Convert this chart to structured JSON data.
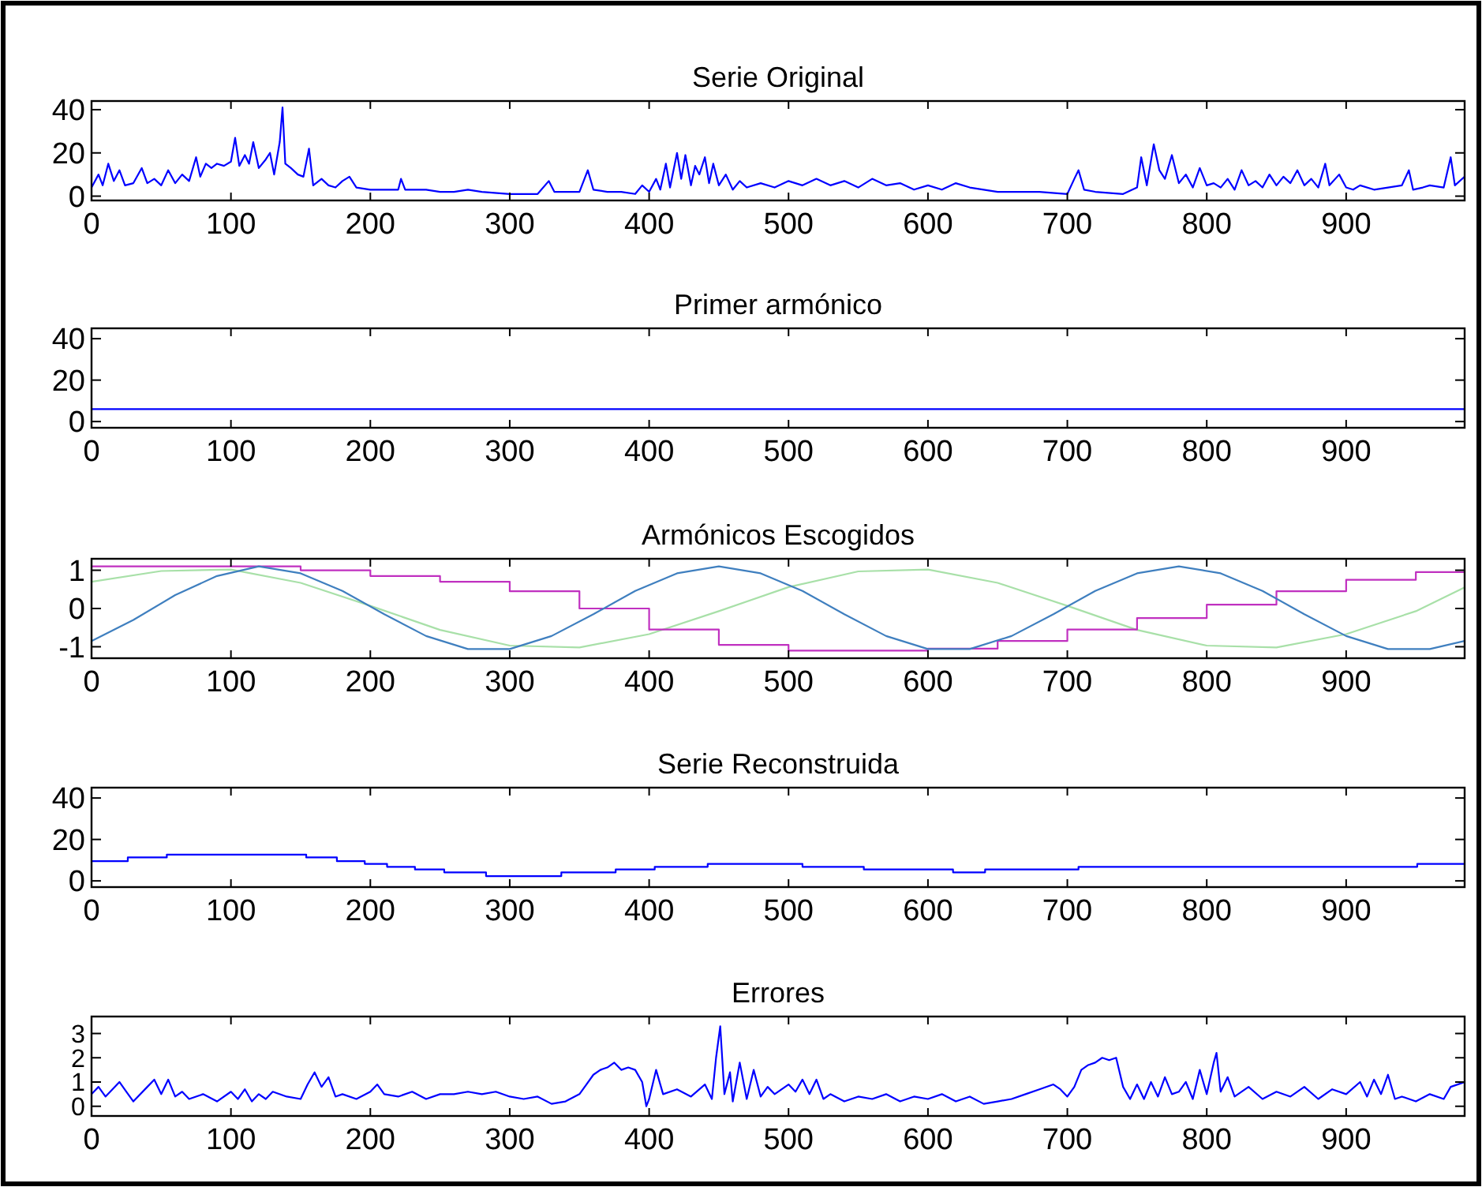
{
  "chart_data": [
    {
      "type": "line",
      "title": "Serie Original",
      "xlim": [
        0,
        985
      ],
      "xticks": [
        0,
        100,
        200,
        300,
        400,
        500,
        600,
        700,
        800,
        900
      ],
      "ylim": [
        -2,
        44
      ],
      "yticks": [
        0,
        20,
        40
      ],
      "series": [
        {
          "color": "#0000ff",
          "x": [
            0,
            5,
            8,
            12,
            16,
            20,
            24,
            30,
            36,
            40,
            45,
            50,
            55,
            60,
            65,
            70,
            75,
            78,
            82,
            86,
            90,
            95,
            100,
            103,
            106,
            110,
            113,
            116,
            120,
            125,
            128,
            131,
            135,
            137,
            139,
            143,
            148,
            152,
            156,
            159,
            165,
            170,
            175,
            180,
            185,
            190,
            200,
            210,
            220,
            222,
            225,
            240,
            250,
            260,
            270,
            280,
            300,
            320,
            328,
            332,
            350,
            356,
            360,
            370,
            380,
            390,
            395,
            400,
            405,
            408,
            412,
            415,
            420,
            423,
            426,
            430,
            433,
            436,
            440,
            443,
            446,
            450,
            455,
            460,
            465,
            470,
            480,
            490,
            500,
            510,
            520,
            530,
            540,
            550,
            560,
            570,
            580,
            590,
            600,
            610,
            620,
            630,
            640,
            650,
            660,
            680,
            700,
            705,
            708,
            712,
            720,
            740,
            750,
            753,
            757,
            762,
            766,
            770,
            775,
            780,
            785,
            790,
            795,
            800,
            805,
            810,
            815,
            820,
            825,
            830,
            835,
            840,
            845,
            850,
            855,
            860,
            865,
            870,
            875,
            880,
            885,
            888,
            895,
            900,
            905,
            910,
            920,
            930,
            940,
            945,
            948,
            955,
            960,
            970,
            975,
            978,
            985
          ],
          "values": [
            4,
            10,
            5,
            15,
            7,
            12,
            5,
            6,
            13,
            6,
            8,
            5,
            12,
            6,
            10,
            7,
            18,
            9,
            15,
            13,
            15,
            14,
            16,
            27,
            14,
            19,
            15,
            25,
            13,
            17,
            20,
            10,
            25,
            41,
            15,
            13,
            10,
            9,
            22,
            5,
            8,
            5,
            4,
            7,
            9,
            4,
            3,
            3,
            3,
            8,
            3,
            3,
            2,
            2,
            3,
            2,
            1,
            1,
            7,
            2,
            2,
            12,
            3,
            2,
            2,
            1,
            5,
            2,
            8,
            3,
            15,
            4,
            20,
            8,
            19,
            5,
            14,
            10,
            18,
            6,
            15,
            5,
            10,
            3,
            7,
            4,
            6,
            4,
            7,
            5,
            8,
            5,
            7,
            4,
            8,
            5,
            6,
            3,
            5,
            3,
            6,
            4,
            3,
            2,
            2,
            2,
            1,
            8,
            12,
            3,
            2,
            1,
            4,
            18,
            5,
            24,
            12,
            8,
            19,
            6,
            10,
            4,
            13,
            5,
            6,
            4,
            8,
            3,
            12,
            5,
            7,
            4,
            10,
            5,
            9,
            6,
            12,
            5,
            8,
            4,
            15,
            5,
            10,
            4,
            3,
            5,
            3,
            4,
            5,
            12,
            3,
            4,
            5,
            4,
            18,
            5,
            9
          ]
        }
      ]
    },
    {
      "type": "line",
      "title": "Primer armónico",
      "xlim": [
        0,
        985
      ],
      "xticks": [
        0,
        100,
        200,
        300,
        400,
        500,
        600,
        700,
        800,
        900
      ],
      "ylim": [
        -3,
        45
      ],
      "yticks": [
        0,
        20,
        40
      ],
      "series": [
        {
          "color": "#0000ff",
          "x": [
            0,
            985
          ],
          "values": [
            6,
            6
          ]
        }
      ]
    },
    {
      "type": "line",
      "title": "Armónicos Escogidos",
      "xlim": [
        0,
        985
      ],
      "xticks": [
        0,
        100,
        200,
        300,
        400,
        500,
        600,
        700,
        800,
        900
      ],
      "ylim": [
        -1.3,
        1.3
      ],
      "yticks": [
        -1,
        0,
        1
      ],
      "series": [
        {
          "color": "#a8e0a8",
          "x": [
            0,
            50,
            100,
            150,
            200,
            250,
            300,
            350,
            400,
            450,
            500,
            550,
            600,
            650,
            700,
            750,
            800,
            850,
            900,
            950,
            985
          ],
          "values": [
            0.7,
            0.98,
            1.02,
            0.67,
            0.07,
            -0.56,
            -0.97,
            -1.02,
            -0.67,
            -0.07,
            0.56,
            0.97,
            1.02,
            0.67,
            0.07,
            -0.56,
            -0.97,
            -1.02,
            -0.67,
            -0.07,
            0.55
          ]
        },
        {
          "color": "#c030c0",
          "type": "step",
          "x": [
            0,
            100,
            150,
            200,
            250,
            300,
            350,
            400,
            450,
            500,
            550,
            600,
            650,
            700,
            750,
            800,
            850,
            900,
            950,
            985
          ],
          "values": [
            1.1,
            1.1,
            1.0,
            0.85,
            0.7,
            0.45,
            0,
            -0.55,
            -0.95,
            -1.1,
            -1.1,
            -1.05,
            -0.85,
            -0.55,
            -0.25,
            0.1,
            0.45,
            0.75,
            0.95,
            1.05
          ]
        },
        {
          "color": "#3f7fbf",
          "x": [
            0,
            30,
            60,
            90,
            120,
            150,
            180,
            210,
            240,
            270,
            300,
            330,
            360,
            390,
            420,
            450,
            480,
            510,
            540,
            570,
            600,
            630,
            660,
            690,
            720,
            750,
            780,
            810,
            840,
            870,
            900,
            930,
            960,
            985
          ],
          "values": [
            -0.85,
            -0.3,
            0.35,
            0.85,
            1.1,
            0.92,
            0.46,
            -0.15,
            -0.72,
            -1.06,
            -1.06,
            -0.72,
            -0.15,
            0.46,
            0.92,
            1.1,
            0.92,
            0.46,
            -0.15,
            -0.72,
            -1.06,
            -1.06,
            -0.72,
            -0.15,
            0.46,
            0.92,
            1.1,
            0.92,
            0.46,
            -0.15,
            -0.72,
            -1.06,
            -1.06,
            -0.85
          ]
        }
      ]
    },
    {
      "type": "step",
      "title": "Serie Reconstruida",
      "xlim": [
        0,
        985
      ],
      "xticks": [
        0,
        100,
        200,
        300,
        400,
        500,
        600,
        700,
        800,
        900
      ],
      "ylim": [
        -3,
        45
      ],
      "yticks": [
        0,
        20,
        40
      ],
      "series": [
        {
          "color": "#0000ff",
          "x": [
            0,
            26,
            54,
            154,
            176,
            196,
            212,
            232,
            253,
            283,
            337,
            376,
            404,
            442,
            510,
            554,
            618,
            641,
            708,
            951,
            985
          ],
          "values": [
            9.5,
            11.3,
            12.7,
            11.3,
            9.5,
            8.2,
            6.8,
            5.5,
            4.1,
            2.3,
            4.1,
            5.5,
            6.8,
            8.2,
            6.8,
            5.5,
            4.1,
            5.5,
            6.8,
            8.2,
            8.2
          ]
        }
      ]
    },
    {
      "type": "line",
      "title": "Errores",
      "xlim": [
        0,
        985
      ],
      "xticks": [
        0,
        100,
        200,
        300,
        400,
        500,
        600,
        700,
        800,
        900
      ],
      "ylim": [
        -0.4,
        3.7
      ],
      "yticks": [
        0,
        1,
        2,
        3
      ],
      "series": [
        {
          "color": "#0000ff",
          "x": [
            0,
            5,
            10,
            15,
            20,
            25,
            30,
            40,
            45,
            50,
            55,
            60,
            65,
            70,
            80,
            90,
            100,
            105,
            110,
            115,
            120,
            125,
            130,
            140,
            150,
            155,
            160,
            165,
            170,
            175,
            180,
            190,
            200,
            205,
            210,
            220,
            230,
            240,
            250,
            260,
            270,
            280,
            290,
            300,
            310,
            320,
            330,
            340,
            350,
            355,
            360,
            365,
            370,
            375,
            380,
            385,
            390,
            395,
            398,
            400,
            405,
            410,
            420,
            430,
            440,
            445,
            448,
            451,
            454,
            458,
            460,
            465,
            470,
            475,
            480,
            485,
            490,
            500,
            505,
            510,
            515,
            520,
            525,
            530,
            540,
            550,
            560,
            570,
            580,
            590,
            600,
            610,
            620,
            630,
            640,
            650,
            660,
            670,
            680,
            690,
            695,
            700,
            705,
            710,
            715,
            720,
            725,
            730,
            735,
            740,
            745,
            750,
            755,
            760,
            765,
            770,
            775,
            780,
            785,
            790,
            795,
            800,
            805,
            807,
            810,
            815,
            820,
            830,
            840,
            850,
            860,
            870,
            880,
            890,
            900,
            910,
            915,
            920,
            925,
            930,
            935,
            940,
            950,
            960,
            970,
            975,
            985
          ],
          "values": [
            0.5,
            0.8,
            0.4,
            0.7,
            1.0,
            0.6,
            0.2,
            0.8,
            1.1,
            0.5,
            1.1,
            0.4,
            0.6,
            0.3,
            0.5,
            0.2,
            0.6,
            0.3,
            0.7,
            0.2,
            0.5,
            0.3,
            0.6,
            0.4,
            0.3,
            0.9,
            1.4,
            0.8,
            1.2,
            0.4,
            0.5,
            0.3,
            0.6,
            0.9,
            0.5,
            0.4,
            0.6,
            0.3,
            0.5,
            0.5,
            0.6,
            0.5,
            0.6,
            0.4,
            0.3,
            0.4,
            0.1,
            0.2,
            0.5,
            0.9,
            1.3,
            1.5,
            1.6,
            1.8,
            1.5,
            1.6,
            1.5,
            1.0,
            0.0,
            0.3,
            1.5,
            0.5,
            0.7,
            0.4,
            0.9,
            0.3,
            2.0,
            3.3,
            0.5,
            1.4,
            0.2,
            1.8,
            0.3,
            1.5,
            0.4,
            0.8,
            0.5,
            0.9,
            0.6,
            1.1,
            0.5,
            1.1,
            0.3,
            0.5,
            0.2,
            0.4,
            0.3,
            0.5,
            0.2,
            0.4,
            0.3,
            0.5,
            0.2,
            0.4,
            0.1,
            0.2,
            0.3,
            0.5,
            0.7,
            0.9,
            0.7,
            0.4,
            0.8,
            1.5,
            1.7,
            1.8,
            2.0,
            1.9,
            2.0,
            0.8,
            0.3,
            0.9,
            0.3,
            1.0,
            0.4,
            1.2,
            0.5,
            0.6,
            1.0,
            0.3,
            1.5,
            0.5,
            1.8,
            2.2,
            0.6,
            1.2,
            0.4,
            0.8,
            0.3,
            0.6,
            0.4,
            0.8,
            0.3,
            0.7,
            0.5,
            1.0,
            0.4,
            1.1,
            0.5,
            1.3,
            0.3,
            0.4,
            0.2,
            0.5,
            0.3,
            0.8,
            1.0
          ]
        }
      ]
    }
  ]
}
